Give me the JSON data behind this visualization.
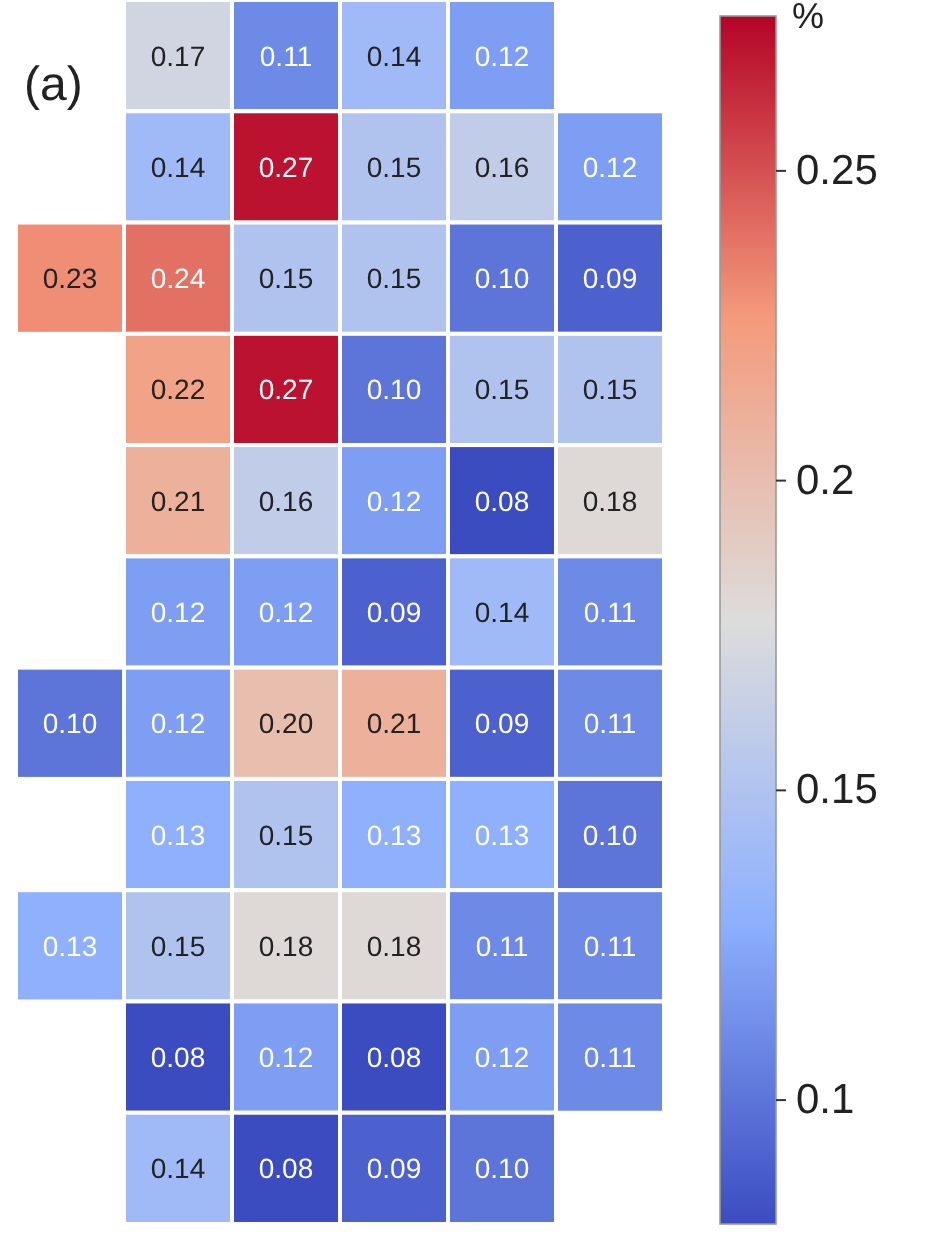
{
  "chart_data": {
    "type": "heatmap",
    "title": "(a)",
    "clabel": "%",
    "categories": [
      null,
      null,
      null,
      null,
      null,
      null
    ],
    "y_categories": [
      null,
      null,
      null,
      null,
      null,
      null,
      null,
      null,
      null,
      null,
      null
    ],
    "cells": [
      [
        null,
        0.17,
        0.11,
        0.14,
        0.12,
        null
      ],
      [
        null,
        0.14,
        0.27,
        0.15,
        0.16,
        0.12
      ],
      [
        0.23,
        0.24,
        0.15,
        0.15,
        0.1,
        0.09
      ],
      [
        null,
        0.22,
        0.27,
        0.1,
        0.15,
        0.15
      ],
      [
        null,
        0.21,
        0.16,
        0.12,
        0.08,
        0.18
      ],
      [
        null,
        0.12,
        0.12,
        0.09,
        0.14,
        0.11
      ],
      [
        0.1,
        0.12,
        0.2,
        0.21,
        0.09,
        0.11
      ],
      [
        null,
        0.13,
        0.15,
        0.13,
        0.13,
        0.1
      ],
      [
        0.13,
        0.15,
        0.18,
        0.18,
        0.11,
        0.11
      ],
      [
        null,
        0.08,
        0.12,
        0.08,
        0.12,
        0.11
      ],
      [
        null,
        0.14,
        0.08,
        0.09,
        0.1,
        null
      ]
    ],
    "cell_labels": [
      [
        null,
        "0.17",
        "0.11",
        "0.14",
        "0.12",
        null
      ],
      [
        null,
        "0.14",
        "0.27",
        "0.15",
        "0.16",
        "0.12"
      ],
      [
        "0.23",
        "0.24",
        "0.15",
        "0.15",
        "0.10",
        "0.09"
      ],
      [
        null,
        "0.22",
        "0.27",
        "0.10",
        "0.15",
        "0.15"
      ],
      [
        null,
        "0.21",
        "0.16",
        "0.12",
        "0.08",
        "0.18"
      ],
      [
        null,
        "0.12",
        "0.12",
        "0.09",
        "0.14",
        "0.11"
      ],
      [
        "0.10",
        "0.12",
        "0.20",
        "0.21",
        "0.09",
        "0.11"
      ],
      [
        null,
        "0.13",
        "0.15",
        "0.13",
        "0.13",
        "0.10"
      ],
      [
        "0.13",
        "0.15",
        "0.18",
        "0.18",
        "0.11",
        "0.11"
      ],
      [
        null,
        "0.08",
        "0.12",
        "0.08",
        "0.12",
        "0.11"
      ],
      [
        null,
        "0.14",
        "0.08",
        "0.09",
        "0.10",
        null
      ]
    ],
    "clim": [
      0.08,
      0.275
    ],
    "cticks": [
      0.1,
      0.15,
      0.2,
      0.25
    ]
  }
}
